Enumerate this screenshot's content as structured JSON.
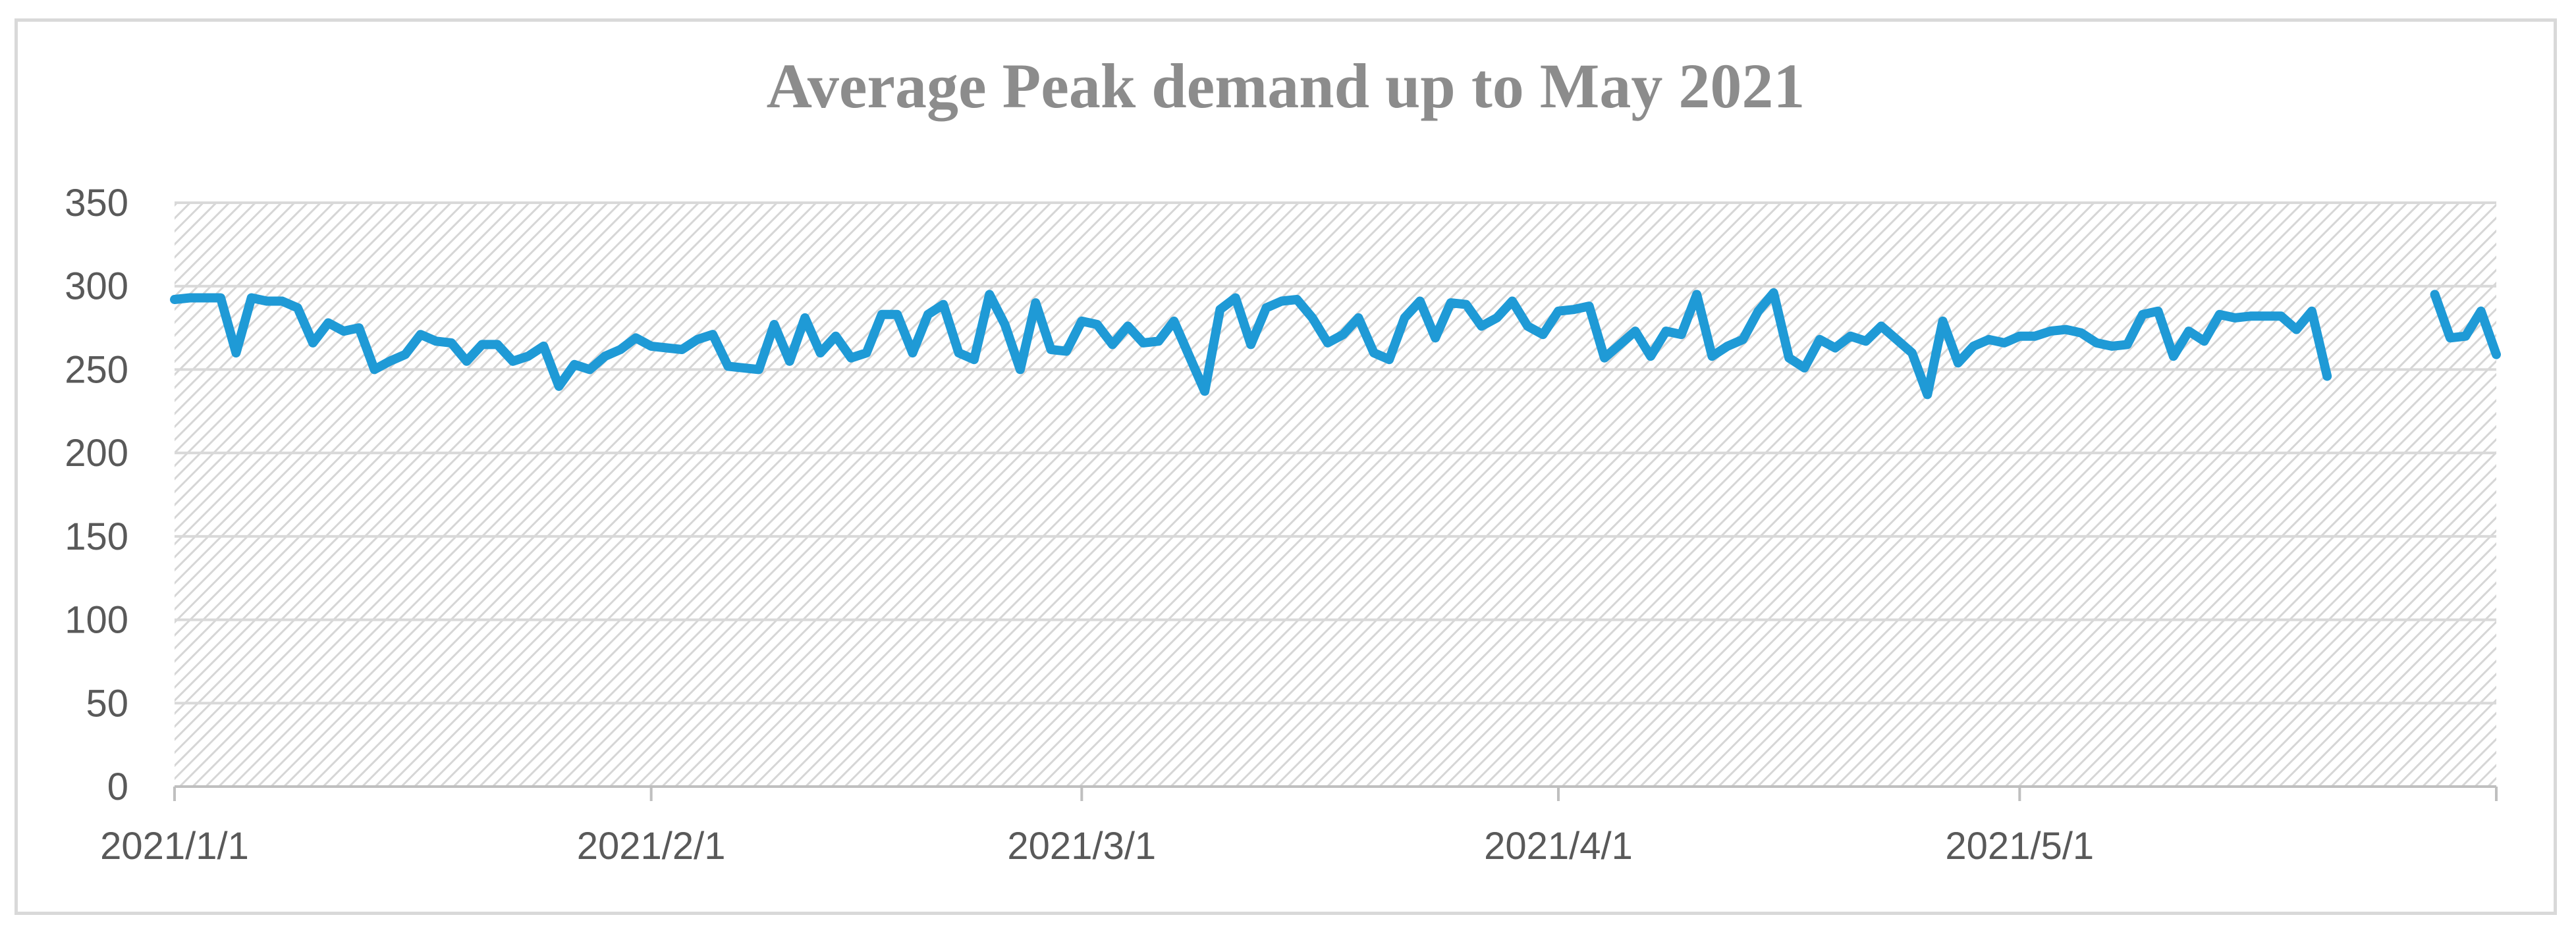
{
  "chart_data": {
    "type": "line",
    "title": "Average Peak demand up to May 2021",
    "xlabel": "",
    "ylabel": "",
    "ylim": [
      0,
      350
    ],
    "yticks": [
      0,
      50,
      100,
      150,
      200,
      250,
      300,
      350
    ],
    "xticks": [
      {
        "label": "2021/1/1",
        "day": 0
      },
      {
        "label": "2021/2/1",
        "day": 31
      },
      {
        "label": "2021/3/1",
        "day": 59
      },
      {
        "label": "2021/4/1",
        "day": 90
      },
      {
        "label": "2021/5/1",
        "day": 120
      }
    ],
    "x_range_days": [
      0,
      151
    ],
    "grid": true,
    "legend": "none",
    "colors": {
      "line": "#1f9ad6",
      "grid": "#d9d9d9",
      "axis": "#bfbfbf",
      "frame": "#d9d9d9",
      "title": "#8c8c8c",
      "ticks": "#595959"
    },
    "series": [
      {
        "name": "Average Peak demand",
        "x_start": "2021/1/1",
        "step": "1 day",
        "values": [
          292,
          293,
          293,
          293,
          260,
          293,
          291,
          291,
          287,
          266,
          278,
          273,
          275,
          250,
          255,
          259,
          271,
          267,
          266,
          255,
          265,
          265,
          255,
          258,
          264,
          240,
          253,
          250,
          258,
          262,
          269,
          264,
          263,
          262,
          268,
          271,
          252,
          251,
          250,
          277,
          255,
          281,
          260,
          270,
          257,
          260,
          283,
          283,
          260,
          283,
          289,
          260,
          256,
          295,
          277,
          250,
          290,
          262,
          261,
          279,
          277,
          265,
          276,
          266,
          267,
          279,
          258,
          237,
          286,
          293,
          265,
          287,
          291,
          292,
          281,
          266,
          271,
          281,
          260,
          256,
          281,
          291,
          269,
          290,
          289,
          276,
          281,
          291,
          276,
          271,
          285,
          286,
          288,
          257,
          265,
          273,
          258,
          273,
          271,
          295,
          258,
          264,
          268,
          285,
          296,
          257,
          251,
          268,
          263,
          270,
          267,
          276,
          268,
          260,
          235,
          279,
          254,
          264,
          268,
          266,
          270,
          270,
          273,
          274,
          272,
          266,
          264,
          265,
          283,
          285,
          258,
          273,
          267,
          283,
          281,
          282,
          282,
          282,
          274,
          285,
          246,
          null,
          null,
          null,
          null,
          null,
          null,
          295,
          269,
          270,
          285,
          259
        ]
      }
    ]
  }
}
